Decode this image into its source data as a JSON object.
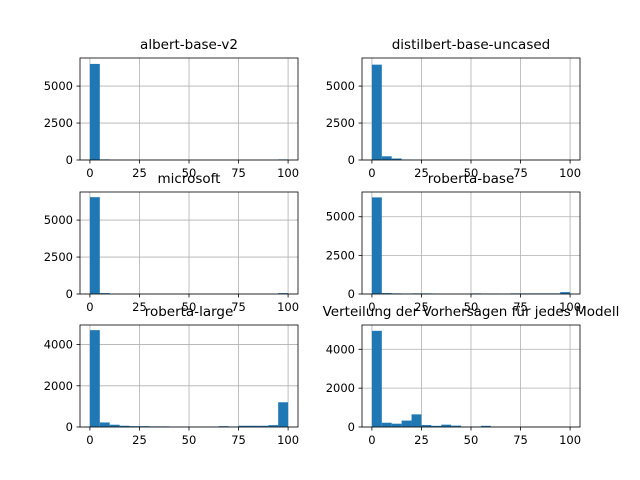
{
  "chart_data": [
    {
      "type": "bar",
      "title": "albert-base-v2",
      "xlim": [
        -5,
        105
      ],
      "ylim": [
        0,
        6900
      ],
      "xticks": [
        0,
        25,
        50,
        75,
        100
      ],
      "yticks": [
        0,
        2500,
        5000
      ],
      "bin_edges": [
        0,
        5,
        10,
        15,
        20,
        25,
        30,
        35,
        40,
        45,
        50,
        55,
        60,
        65,
        70,
        75,
        80,
        85,
        90,
        95,
        100
      ],
      "values": [
        6500,
        40,
        10,
        5,
        5,
        5,
        5,
        5,
        5,
        5,
        5,
        5,
        5,
        5,
        5,
        5,
        5,
        5,
        5,
        40
      ],
      "grid": true,
      "color": "#1f77b4"
    },
    {
      "type": "bar",
      "title": "distilbert-base-uncased",
      "xlim": [
        -5,
        105
      ],
      "ylim": [
        0,
        6900
      ],
      "xticks": [
        0,
        25,
        50,
        75,
        100
      ],
      "yticks": [
        0,
        2500,
        5000
      ],
      "bin_edges": [
        0,
        5,
        10,
        15,
        20,
        25,
        30,
        35,
        40,
        45,
        50,
        55,
        60,
        65,
        70,
        75,
        80,
        85,
        90,
        95,
        100
      ],
      "values": [
        6450,
        250,
        100,
        30,
        10,
        5,
        5,
        5,
        5,
        5,
        5,
        5,
        5,
        5,
        5,
        5,
        5,
        5,
        5,
        10
      ],
      "grid": true,
      "color": "#1f77b4"
    },
    {
      "type": "bar",
      "title": "microsoft",
      "xlim": [
        -5,
        105
      ],
      "ylim": [
        0,
        6900
      ],
      "xticks": [
        0,
        25,
        50,
        75,
        100
      ],
      "yticks": [
        0,
        2500,
        5000
      ],
      "bin_edges": [
        0,
        5,
        10,
        15,
        20,
        25,
        30,
        35,
        40,
        45,
        50,
        55,
        60,
        65,
        70,
        75,
        80,
        85,
        90,
        95,
        100
      ],
      "values": [
        6550,
        60,
        10,
        5,
        5,
        5,
        5,
        5,
        5,
        5,
        5,
        5,
        5,
        5,
        5,
        5,
        5,
        5,
        5,
        60
      ],
      "grid": true,
      "color": "#1f77b4"
    },
    {
      "type": "bar",
      "title": "roberta-base",
      "xlim": [
        -5,
        105
      ],
      "ylim": [
        0,
        6600
      ],
      "xticks": [
        0,
        25,
        50,
        75,
        100
      ],
      "yticks": [
        0,
        2500,
        5000
      ],
      "bin_edges": [
        0,
        5,
        10,
        15,
        20,
        25,
        30,
        35,
        40,
        45,
        50,
        55,
        60,
        65,
        70,
        75,
        80,
        85,
        90,
        95,
        100
      ],
      "values": [
        6250,
        60,
        40,
        30,
        40,
        40,
        20,
        15,
        15,
        15,
        40,
        30,
        30,
        15,
        40,
        40,
        40,
        40,
        40,
        120
      ],
      "grid": true,
      "color": "#1f77b4"
    },
    {
      "type": "bar",
      "title": "roberta-large",
      "xlim": [
        -5,
        105
      ],
      "ylim": [
        0,
        4950
      ],
      "xticks": [
        0,
        25,
        50,
        75,
        100
      ],
      "yticks": [
        0,
        2000,
        4000
      ],
      "bin_edges": [
        0,
        5,
        10,
        15,
        20,
        25,
        30,
        35,
        40,
        45,
        50,
        55,
        60,
        65,
        70,
        75,
        80,
        85,
        90,
        95,
        100
      ],
      "values": [
        4700,
        220,
        110,
        60,
        40,
        40,
        30,
        30,
        15,
        15,
        15,
        15,
        15,
        40,
        20,
        60,
        60,
        60,
        90,
        1200
      ],
      "grid": true,
      "color": "#1f77b4"
    },
    {
      "type": "bar",
      "title": "Verteilung der Vorhersagen für jedes Modell",
      "xlim": [
        -5,
        105
      ],
      "ylim": [
        0,
        5250
      ],
      "xticks": [
        0,
        25,
        50,
        75,
        100
      ],
      "yticks": [
        0,
        2000,
        4000
      ],
      "bin_edges": [
        0,
        5,
        10,
        15,
        20,
        25,
        30,
        35,
        40,
        45,
        50,
        55,
        60,
        65,
        70,
        75,
        80,
        85,
        90,
        95,
        100
      ],
      "values": [
        4950,
        220,
        170,
        330,
        650,
        100,
        60,
        120,
        70,
        20,
        20,
        60,
        15,
        10,
        10,
        10,
        10,
        10,
        10,
        10
      ],
      "grid": true,
      "color": "#1f77b4"
    }
  ]
}
